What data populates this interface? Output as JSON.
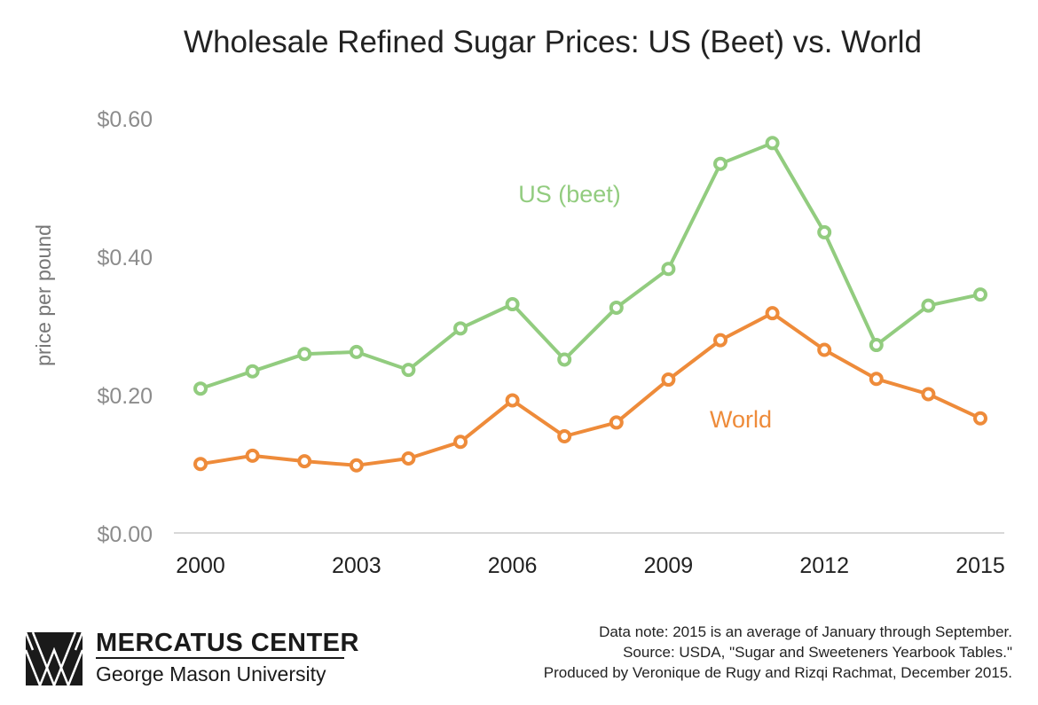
{
  "chart_data": {
    "type": "line",
    "title": "Wholesale Refined Sugar Prices: US (Beet) vs. World",
    "ylabel": "price per pound",
    "xlabel": "",
    "ylim": [
      0,
      0.6
    ],
    "xlim": [
      2000,
      2015
    ],
    "yticks": [
      "$0.00",
      "$0.20",
      "$0.40",
      "$0.60"
    ],
    "ytick_values": [
      0,
      0.2,
      0.4,
      0.6
    ],
    "xticks": [
      "2000",
      "2003",
      "2006",
      "2009",
      "2012",
      "2015"
    ],
    "xtick_values": [
      2000,
      2003,
      2006,
      2009,
      2012,
      2015
    ],
    "grid": false,
    "x": [
      2000,
      2001,
      2002,
      2003,
      2004,
      2005,
      2006,
      2007,
      2008,
      2009,
      2010,
      2011,
      2012,
      2013,
      2014,
      2015
    ],
    "series": [
      {
        "name": "US (beet)",
        "color": "#92cc7f",
        "values": [
          0.21,
          0.235,
          0.26,
          0.263,
          0.237,
          0.297,
          0.332,
          0.252,
          0.327,
          0.383,
          0.535,
          0.565,
          0.436,
          0.273,
          0.33,
          0.346
        ]
      },
      {
        "name": "World",
        "color": "#ee8b3a",
        "values": [
          0.101,
          0.113,
          0.105,
          0.099,
          0.109,
          0.133,
          0.193,
          0.141,
          0.161,
          0.223,
          0.28,
          0.319,
          0.266,
          0.224,
          0.202,
          0.167
        ]
      }
    ]
  },
  "labels": {
    "us": "US (beet)",
    "world": "World"
  },
  "footer": {
    "note1": "Data note: 2015 is an average of January through September.",
    "note2": "Source: USDA, \"Sugar and Sweeteners Yearbook Tables.\"",
    "note3": "Produced by Veronique de Rugy and Rizqi Rachmat, December 2015."
  },
  "brand": {
    "name": "MERCATUS CENTER",
    "sub": "George Mason University",
    "logo_icon": "mercatus-logo-icon"
  }
}
